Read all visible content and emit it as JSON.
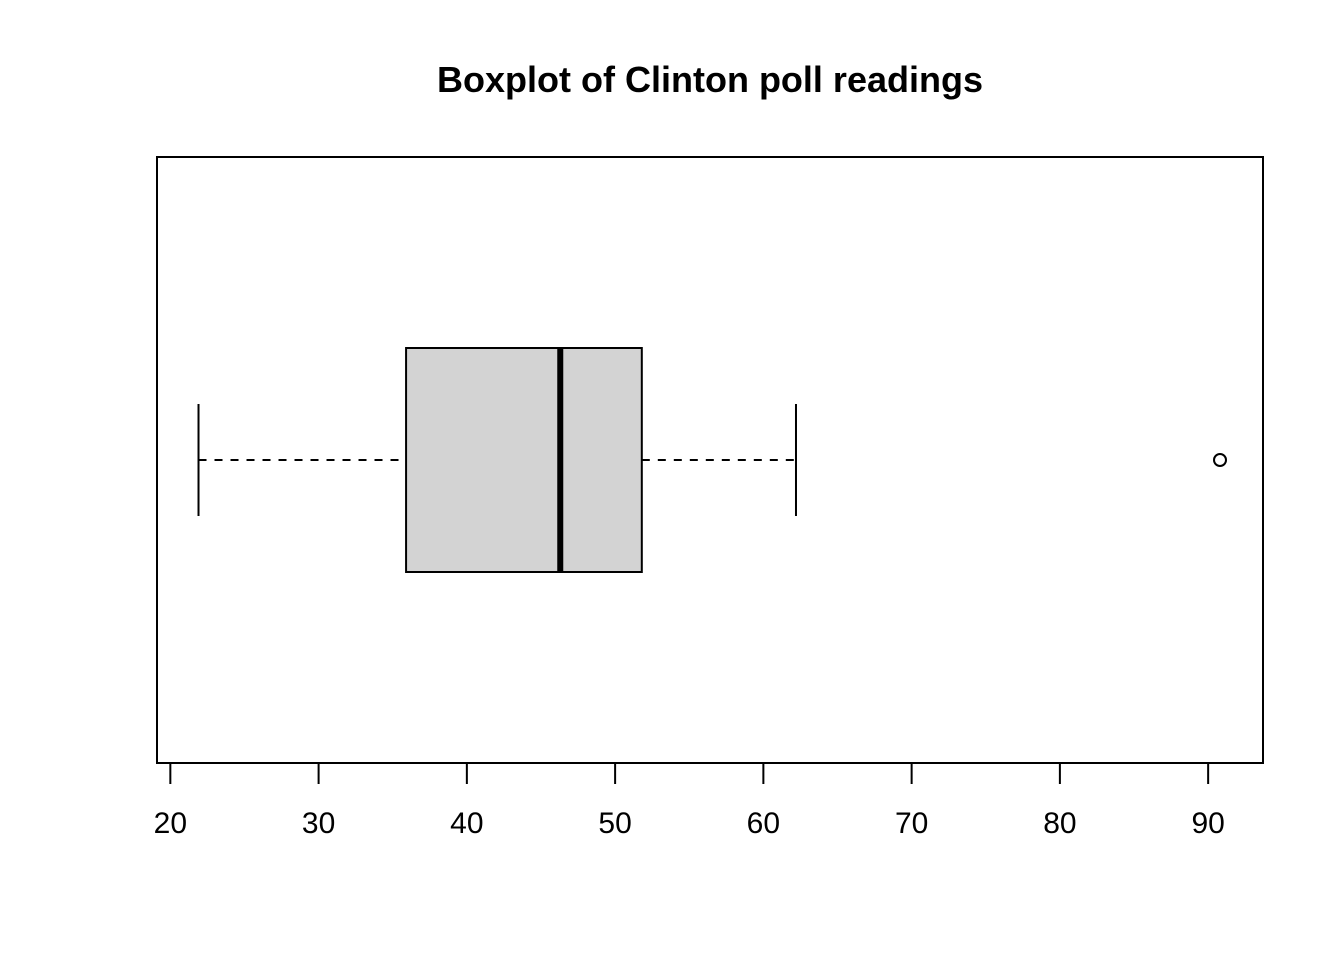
{
  "chart_data": {
    "type": "boxplot",
    "orientation": "horizontal",
    "title": "Boxplot of Clinton poll readings",
    "xlabel": "",
    "ylabel": "",
    "xlim": [
      19.1,
      93.7
    ],
    "x_ticks": [
      20,
      30,
      40,
      50,
      60,
      70,
      80,
      90
    ],
    "x_tick_labels": [
      "20",
      "30",
      "40",
      "50",
      "60",
      "70",
      "80",
      "90"
    ],
    "grid": false,
    "legend": "none",
    "box": {
      "whisker_low": 21.9,
      "q1": 35.9,
      "median": 46.3,
      "q3": 51.8,
      "whisker_high": 62.2,
      "outliers": [
        90.8
      ]
    },
    "colors": {
      "box_fill": "#d3d3d3",
      "stroke": "#000000",
      "background": "#ffffff"
    }
  }
}
